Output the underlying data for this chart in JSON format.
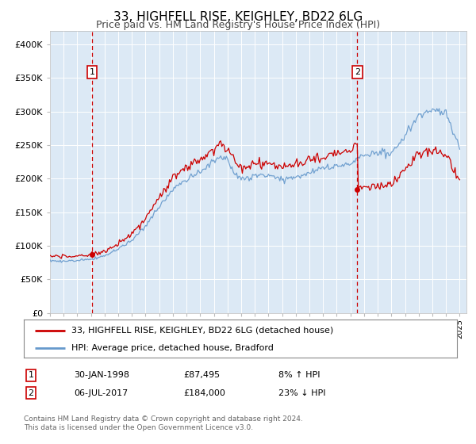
{
  "title": "33, HIGHFELL RISE, KEIGHLEY, BD22 6LG",
  "subtitle": "Price paid vs. HM Land Registry's House Price Index (HPI)",
  "title_fontsize": 11,
  "subtitle_fontsize": 9,
  "background_color": "#ffffff",
  "plot_bg_color": "#dce9f5",
  "grid_color": "#ffffff",
  "ylim": [
    0,
    420000
  ],
  "yticks": [
    0,
    50000,
    100000,
    150000,
    200000,
    250000,
    300000,
    350000,
    400000
  ],
  "ytick_labels": [
    "£0",
    "£50K",
    "£100K",
    "£150K",
    "£200K",
    "£250K",
    "£300K",
    "£350K",
    "£400K"
  ],
  "xlim_start": 1995.0,
  "xlim_end": 2025.5,
  "sale1_year": 1998.08,
  "sale1_price": 87495,
  "sale2_year": 2017.5,
  "sale2_price": 184000,
  "sale1_label": "1",
  "sale2_label": "2",
  "property_line_color": "#cc0000",
  "hpi_line_color": "#6699cc",
  "legend1_text": "33, HIGHFELL RISE, KEIGHLEY, BD22 6LG (detached house)",
  "legend2_text": "HPI: Average price, detached house, Bradford",
  "table_row1": [
    "1",
    "30-JAN-1998",
    "£87,495",
    "8% ↑ HPI"
  ],
  "table_row2": [
    "2",
    "06-JUL-2017",
    "£184,000",
    "23% ↓ HPI"
  ],
  "footer_text": "Contains HM Land Registry data © Crown copyright and database right 2024.\nThis data is licensed under the Open Government Licence v3.0."
}
